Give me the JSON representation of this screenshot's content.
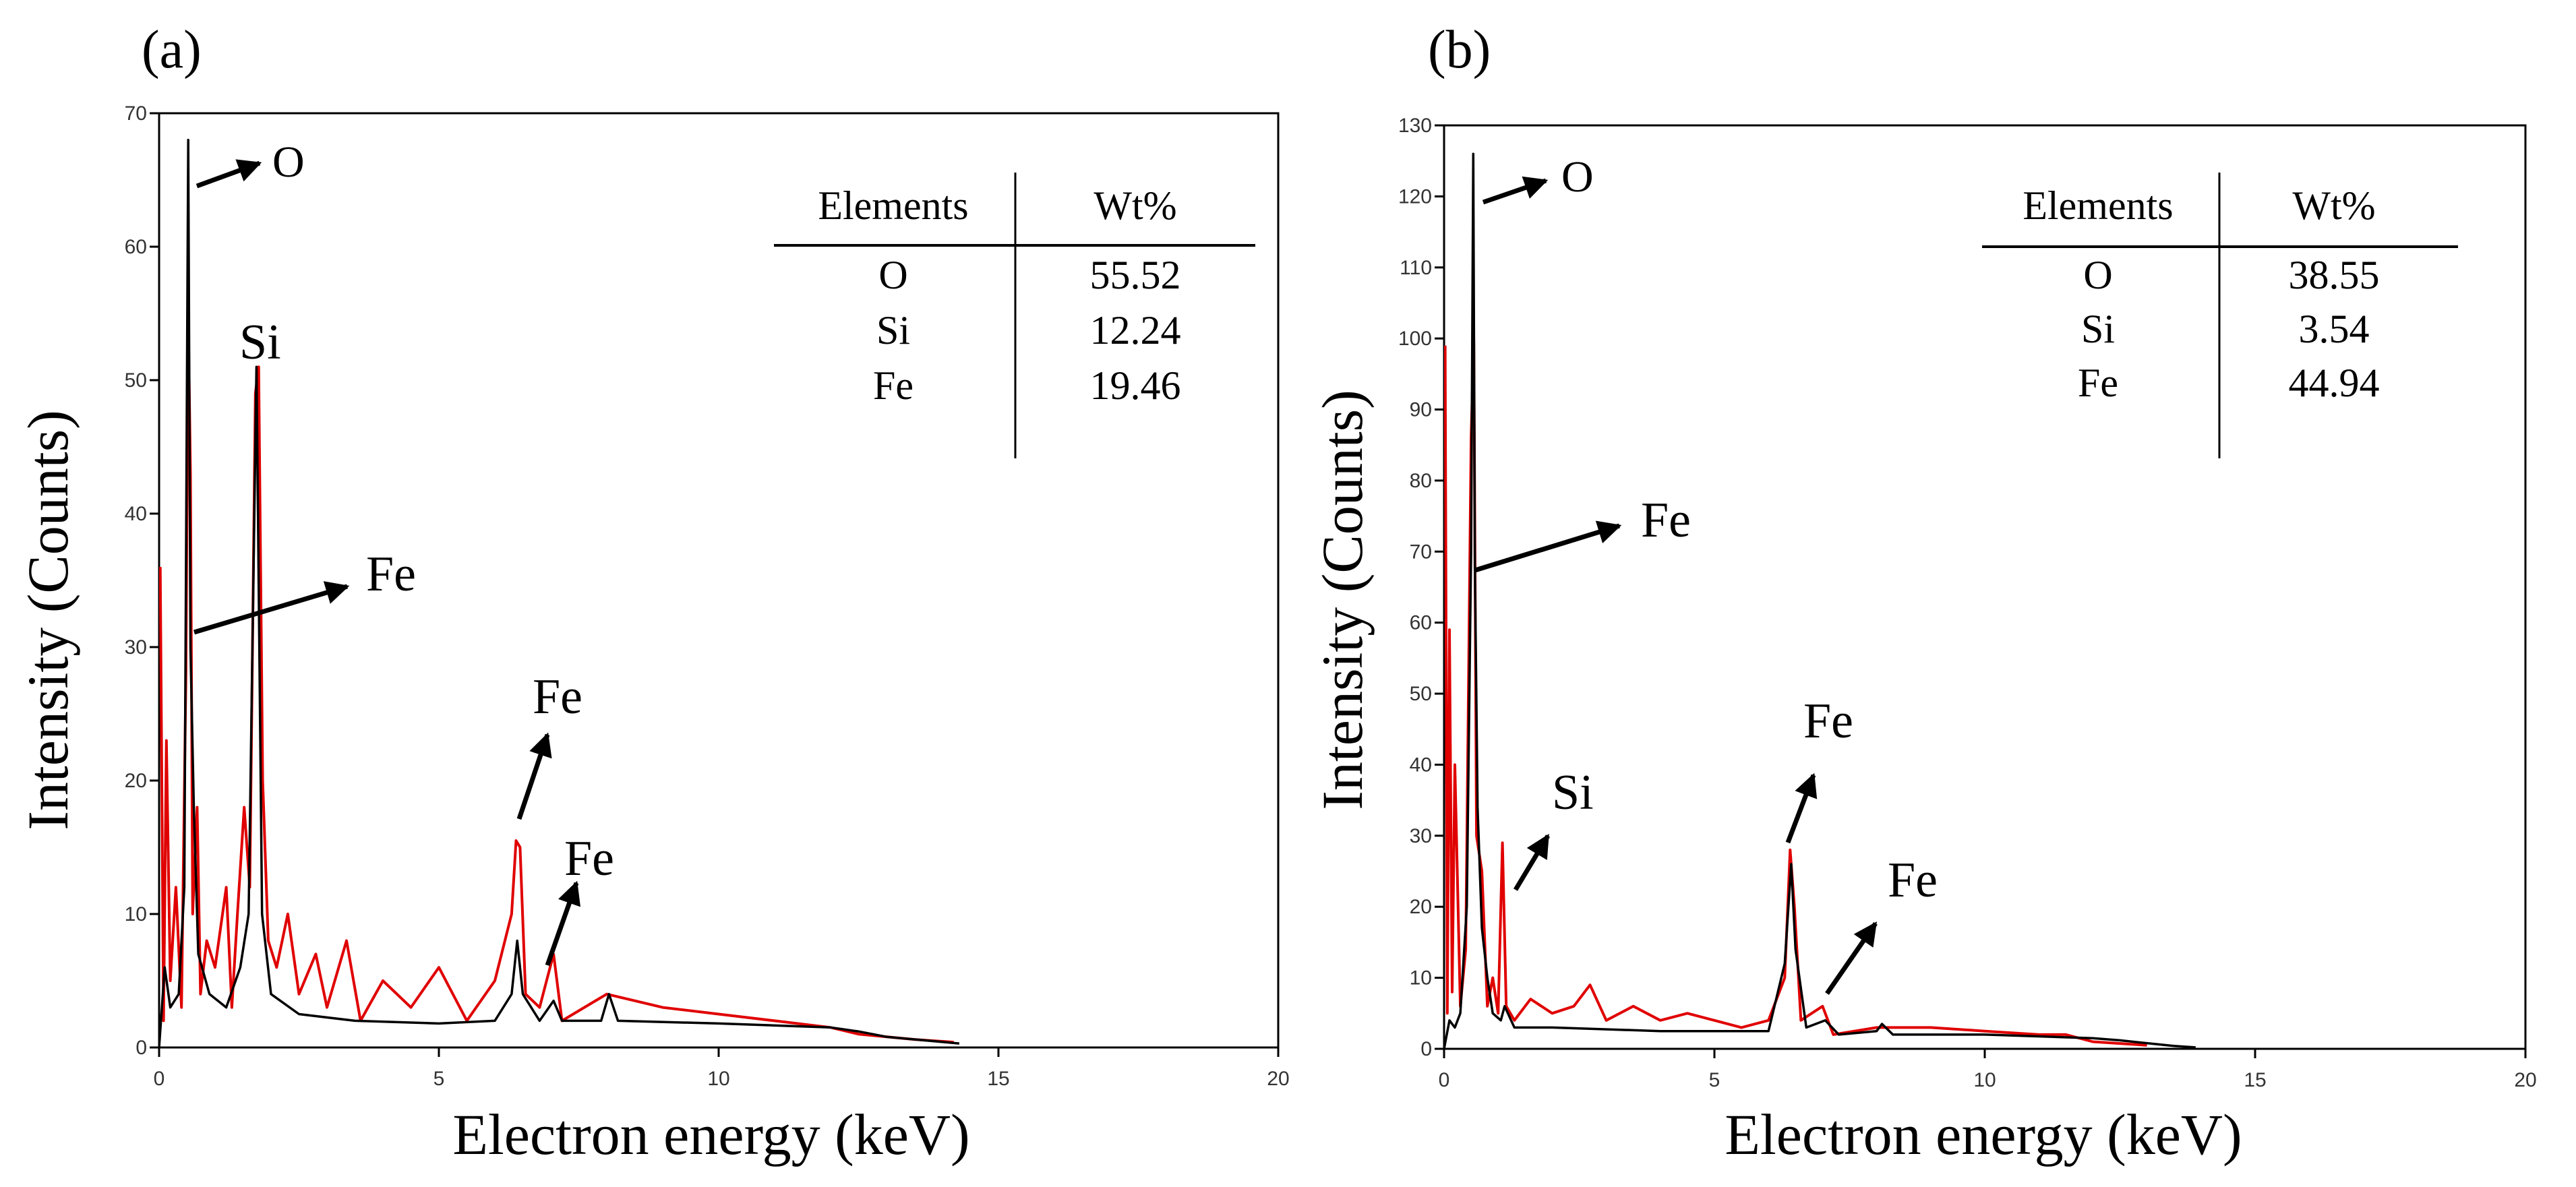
{
  "chart_data": [
    {
      "type": "line",
      "panel_label": "(a)",
      "xlabel": "Electron energy (keV)",
      "ylabel": "Intensity (Counts)",
      "xlim": [
        0,
        20
      ],
      "ylim": [
        0,
        70
      ],
      "x_ticks": [
        0,
        5,
        10,
        15,
        20
      ],
      "y_ticks": [
        0,
        10,
        20,
        30,
        40,
        50,
        60,
        70
      ],
      "grid": false,
      "series": [
        {
          "name": "black spectrum",
          "color": "#000000",
          "points": [
            [
              0,
              0
            ],
            [
              0.1,
              6
            ],
            [
              0.2,
              3
            ],
            [
              0.35,
              4
            ],
            [
              0.45,
              12
            ],
            [
              0.52,
              68
            ],
            [
              0.56,
              30
            ],
            [
              0.62,
              18
            ],
            [
              0.7,
              7
            ],
            [
              0.9,
              4
            ],
            [
              1.2,
              3
            ],
            [
              1.45,
              6
            ],
            [
              1.6,
              10
            ],
            [
              1.74,
              51
            ],
            [
              1.84,
              10
            ],
            [
              2.0,
              4
            ],
            [
              2.5,
              2.5
            ],
            [
              3.5,
              2
            ],
            [
              5.0,
              1.8
            ],
            [
              6.0,
              2
            ],
            [
              6.3,
              4
            ],
            [
              6.4,
              8
            ],
            [
              6.5,
              4
            ],
            [
              6.8,
              2
            ],
            [
              7.05,
              3.5
            ],
            [
              7.2,
              2
            ],
            [
              7.9,
              2
            ],
            [
              8.04,
              4
            ],
            [
              8.2,
              2
            ],
            [
              10,
              1.8
            ],
            [
              12,
              1.5
            ],
            [
              12.5,
              1.2
            ],
            [
              13,
              0.8
            ],
            [
              14.3,
              0.3
            ]
          ]
        },
        {
          "name": "red spectrum",
          "color": "#e00000",
          "points": [
            [
              0.02,
              36
            ],
            [
              0.08,
              2
            ],
            [
              0.13,
              23
            ],
            [
              0.2,
              5
            ],
            [
              0.3,
              12
            ],
            [
              0.4,
              3
            ],
            [
              0.48,
              28
            ],
            [
              0.52,
              55
            ],
            [
              0.56,
              43
            ],
            [
              0.6,
              10
            ],
            [
              0.68,
              18
            ],
            [
              0.74,
              4
            ],
            [
              0.85,
              8
            ],
            [
              1.0,
              6
            ],
            [
              1.2,
              12
            ],
            [
              1.3,
              3
            ],
            [
              1.4,
              10
            ],
            [
              1.52,
              18
            ],
            [
              1.62,
              12
            ],
            [
              1.72,
              49
            ],
            [
              1.78,
              51
            ],
            [
              1.85,
              20
            ],
            [
              1.95,
              8
            ],
            [
              2.1,
              6
            ],
            [
              2.3,
              10
            ],
            [
              2.5,
              4
            ],
            [
              2.8,
              7
            ],
            [
              3.0,
              3
            ],
            [
              3.35,
              8
            ],
            [
              3.6,
              2
            ],
            [
              4.0,
              5
            ],
            [
              4.5,
              3
            ],
            [
              5.0,
              6
            ],
            [
              5.5,
              2
            ],
            [
              6.0,
              5
            ],
            [
              6.3,
              10
            ],
            [
              6.38,
              15.5
            ],
            [
              6.45,
              15
            ],
            [
              6.55,
              4
            ],
            [
              6.8,
              3
            ],
            [
              7.05,
              7
            ],
            [
              7.2,
              2
            ],
            [
              8.0,
              4
            ],
            [
              9.0,
              3
            ],
            [
              10,
              2.5
            ],
            [
              11,
              2
            ],
            [
              12,
              1.5
            ],
            [
              12.5,
              1
            ],
            [
              13.5,
              0.6
            ],
            [
              14.2,
              0.4
            ]
          ]
        }
      ],
      "annotations": [
        {
          "text": "O",
          "x": 0.55,
          "y": 67.8
        },
        {
          "text": "Si",
          "x": 1.77,
          "y": 50.5
        },
        {
          "text": "Fe",
          "x": 0.6,
          "y": 31.5
        },
        {
          "text": "Fe",
          "x": 6.4,
          "y": 15.5
        },
        {
          "text": "Fe",
          "x": 7.05,
          "y": 6.5
        }
      ],
      "table": {
        "headers": [
          "Elements",
          "Wt%"
        ],
        "rows": [
          [
            "O",
            "55.52"
          ],
          [
            "Si",
            "12.24"
          ],
          [
            "Fe",
            "19.46"
          ]
        ]
      }
    },
    {
      "type": "line",
      "panel_label": "(b)",
      "xlabel": "Electron energy (keV)",
      "ylabel": "Intensity (Counts)",
      "xlim": [
        0,
        20
      ],
      "ylim": [
        0,
        130
      ],
      "x_ticks": [
        0,
        5,
        10,
        15,
        20
      ],
      "y_ticks": [
        0,
        10,
        20,
        30,
        40,
        50,
        60,
        70,
        80,
        90,
        100,
        110,
        120,
        130
      ],
      "grid": false,
      "series": [
        {
          "name": "black spectrum",
          "color": "#000000",
          "points": [
            [
              0,
              0
            ],
            [
              0.1,
              4
            ],
            [
              0.2,
              3
            ],
            [
              0.3,
              5
            ],
            [
              0.42,
              20
            ],
            [
              0.5,
              70
            ],
            [
              0.54,
              126
            ],
            [
              0.57,
              68
            ],
            [
              0.62,
              34
            ],
            [
              0.7,
              17
            ],
            [
              0.8,
              10
            ],
            [
              0.9,
              5
            ],
            [
              1.05,
              4
            ],
            [
              1.12,
              6
            ],
            [
              1.3,
              3
            ],
            [
              2.0,
              3
            ],
            [
              4.0,
              2.5
            ],
            [
              6.0,
              2.5
            ],
            [
              6.3,
              12
            ],
            [
              6.42,
              26
            ],
            [
              6.5,
              14
            ],
            [
              6.7,
              3
            ],
            [
              7.05,
              4
            ],
            [
              7.3,
              2
            ],
            [
              8.0,
              2.5
            ],
            [
              8.1,
              3.5
            ],
            [
              8.3,
              2
            ],
            [
              10,
              2
            ],
            [
              12,
              1.5
            ],
            [
              12.5,
              1.2
            ],
            [
              13.5,
              0.4
            ],
            [
              13.9,
              0.2
            ]
          ]
        },
        {
          "name": "red spectrum",
          "color": "#e00000",
          "points": [
            [
              0.02,
              99
            ],
            [
              0.06,
              5
            ],
            [
              0.1,
              59
            ],
            [
              0.15,
              8
            ],
            [
              0.2,
              40
            ],
            [
              0.3,
              6
            ],
            [
              0.4,
              14
            ],
            [
              0.5,
              86
            ],
            [
              0.55,
              100
            ],
            [
              0.6,
              30
            ],
            [
              0.7,
              25
            ],
            [
              0.8,
              6
            ],
            [
              0.9,
              10
            ],
            [
              1.0,
              5
            ],
            [
              1.08,
              29
            ],
            [
              1.15,
              6
            ],
            [
              1.3,
              4
            ],
            [
              1.6,
              7
            ],
            [
              2.0,
              5
            ],
            [
              2.4,
              6
            ],
            [
              2.7,
              9
            ],
            [
              3.0,
              4
            ],
            [
              3.5,
              6
            ],
            [
              4.0,
              4
            ],
            [
              4.5,
              5
            ],
            [
              5.0,
              4
            ],
            [
              5.5,
              3
            ],
            [
              6.0,
              4
            ],
            [
              6.3,
              10
            ],
            [
              6.4,
              28
            ],
            [
              6.48,
              20
            ],
            [
              6.6,
              4
            ],
            [
              7.0,
              6
            ],
            [
              7.2,
              2
            ],
            [
              8.0,
              3
            ],
            [
              9.0,
              3
            ],
            [
              10,
              2.5
            ],
            [
              11,
              2
            ],
            [
              11.5,
              2
            ],
            [
              12,
              1
            ],
            [
              13,
              0.5
            ]
          ]
        }
      ],
      "annotations": [
        {
          "text": "O",
          "x": 0.55,
          "y": 126
        },
        {
          "text": "Fe",
          "x": 0.55,
          "y": 68
        },
        {
          "text": "Si",
          "x": 1.1,
          "y": 29
        },
        {
          "text": "Fe",
          "x": 6.4,
          "y": 27
        },
        {
          "text": "Fe",
          "x": 7.0,
          "y": 5
        }
      ],
      "table": {
        "headers": [
          "Elements",
          "Wt%"
        ],
        "rows": [
          [
            "O",
            "38.55"
          ],
          [
            "Si",
            "3.54"
          ],
          [
            "Fe",
            "44.94"
          ]
        ]
      }
    }
  ]
}
